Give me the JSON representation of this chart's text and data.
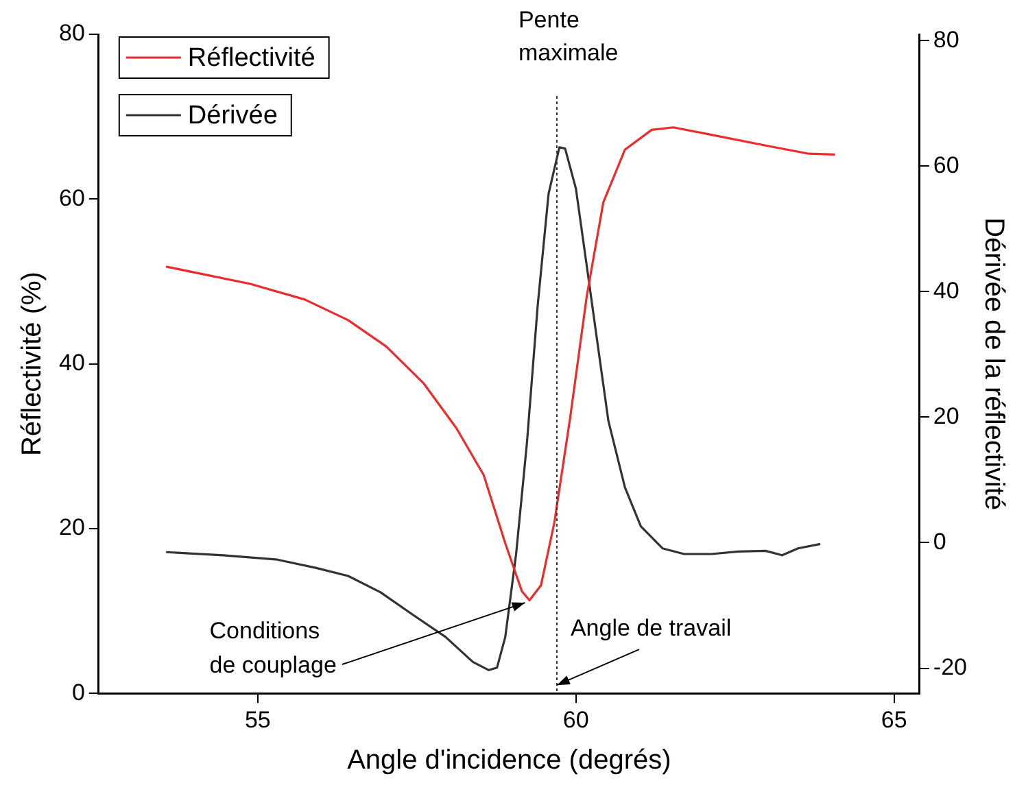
{
  "chart_data": {
    "type": "line",
    "xlabel": "Angle d'incidence (degrés)",
    "ylabel": "Réflectivité (%)",
    "y2label": "Dérivée de la réflectivité",
    "xlim": [
      52.5,
      65.4
    ],
    "xticks": [
      55,
      60,
      65
    ],
    "ylim": [
      0,
      80
    ],
    "yticks": [
      0,
      20,
      40,
      60,
      80
    ],
    "y2lim": [
      -24,
      81
    ],
    "y2ticks": [
      -20,
      0,
      20,
      40,
      60,
      80
    ],
    "grid": false,
    "legend": "top left",
    "marker": "none",
    "line_style": "solid",
    "series": [
      {
        "name": "Réflectivité",
        "color": "#ee2b2b",
        "axis": "y",
        "x": [
          53.56,
          54.88,
          55.74,
          56.42,
          57.02,
          57.61,
          58.12,
          58.55,
          58.89,
          59.15,
          59.27,
          59.45,
          59.66,
          59.91,
          60.17,
          60.43,
          60.77,
          61.19,
          61.53,
          62.13,
          62.98,
          63.66,
          64.07
        ],
        "values": [
          51.8,
          49.7,
          47.8,
          45.3,
          42.1,
          37.6,
          32.2,
          26.5,
          18.2,
          12.4,
          11.3,
          13.1,
          20.7,
          33.5,
          48.2,
          59.6,
          66.0,
          68.4,
          68.7,
          67.8,
          66.5,
          65.5,
          65.4
        ]
      },
      {
        "name": "Dérivée",
        "color": "#333333",
        "axis": "y2",
        "x": [
          53.56,
          54.46,
          55.31,
          55.91,
          56.42,
          56.93,
          57.44,
          57.95,
          58.38,
          58.63,
          58.76,
          58.89,
          59.06,
          59.23,
          59.4,
          59.57,
          59.74,
          59.83,
          60.0,
          60.17,
          60.34,
          60.51,
          60.77,
          61.02,
          61.36,
          61.7,
          62.13,
          62.55,
          62.98,
          63.24,
          63.49,
          63.84
        ],
        "values": [
          -1.5,
          -2.0,
          -2.7,
          -4.0,
          -5.3,
          -7.9,
          -11.5,
          -15.0,
          -19.0,
          -20.3,
          -19.9,
          -15.0,
          -1.8,
          15.9,
          37.9,
          55.6,
          63.0,
          62.8,
          56.4,
          44.1,
          31.7,
          19.4,
          8.8,
          2.6,
          -0.9,
          -1.8,
          -1.8,
          -1.4,
          -1.3,
          -2.0,
          -0.9,
          -0.2
        ]
      }
    ],
    "ref_lines": [
      {
        "axis": "x",
        "value": 59.7,
        "label": "Pente maximale",
        "line_style": "dotted",
        "color": "#333333"
      }
    ],
    "annotations": [
      {
        "text": "Conditions de couplage",
        "x": 59.2,
        "y": 11
      },
      {
        "text": "Angle de travail",
        "x": 59.7,
        "y": 1
      }
    ]
  }
}
